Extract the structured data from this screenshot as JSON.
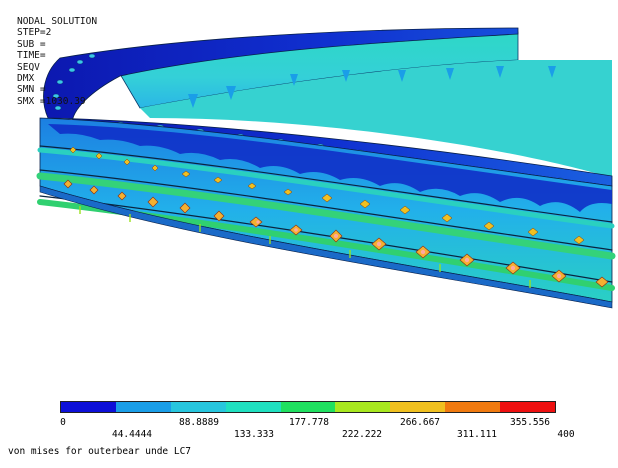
{
  "header": {
    "title": "NODAL SOLUTION",
    "lines": [
      "STEP=2",
      "SUB =",
      "TIME=",
      "SEQV",
      "DMX",
      "SMN =",
      "SMX =1030.39"
    ]
  },
  "legend": {
    "colors": [
      "#0d10d8",
      "#1a9ee8",
      "#27c6de",
      "#20e0c0",
      "#20e060",
      "#a8e820",
      "#f0c020",
      "#f07a10",
      "#ee1010"
    ],
    "ticks_lower": [
      "0",
      "88.8889",
      "177.778",
      "266.667",
      "355.556"
    ],
    "ticks_upper": [
      "44.4444",
      "133.333",
      "222.222",
      "311.111",
      "400"
    ]
  },
  "caption": "von mises for outerbear unde LC7",
  "model": {
    "icon": "bearing-ring-contour-icon",
    "colors": {
      "inner_face": "#2fd2c4",
      "inner_face_blue": "#1f8fe0",
      "top_face": "#0f1fb8",
      "top_face_mid": "#1a48d8",
      "outer_band": "#28b8e4",
      "groove_band": "#22c8a8",
      "green_band": "#34d26a",
      "hotspot": "#f2c02a",
      "hotspot_core": "#ff8a4a"
    }
  }
}
